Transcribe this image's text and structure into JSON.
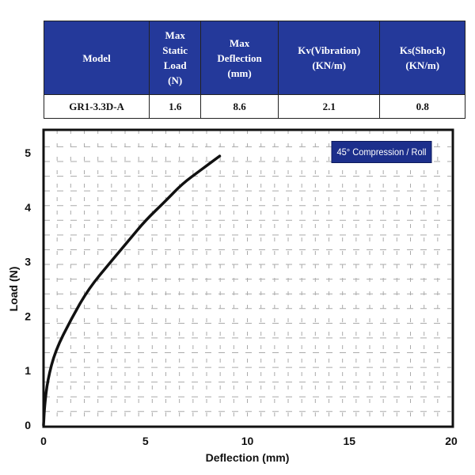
{
  "table": {
    "headers": [
      "Model",
      "Max Static Load (N)",
      "Max Deflection (mm)",
      "Kv(Vibration) (KN/m)",
      "Ks(Shock) (KN/m)"
    ],
    "header_lines": [
      [
        "Model"
      ],
      [
        "Max",
        "Static",
        "Load",
        "(N)"
      ],
      [
        "Max",
        "Deflection",
        "(mm)"
      ],
      [
        "Kv(Vibration)",
        "(KN/m)"
      ],
      [
        "Ks(Shock)",
        "(KN/m)"
      ]
    ],
    "rows": [
      [
        "GR1-3.3D-A",
        "1.6",
        "8.6",
        "2.1",
        "0.8"
      ]
    ],
    "header_color": "#24399a"
  },
  "chart_data": {
    "type": "line",
    "title": "",
    "xlabel": "Deflection (mm)",
    "ylabel": "Load (N)",
    "xlim": [
      0,
      20
    ],
    "ylim": [
      0,
      5
    ],
    "xticks": [
      "0",
      "5",
      "10",
      "15",
      "20"
    ],
    "yticks": [
      "0",
      "1",
      "2",
      "3",
      "4",
      "5"
    ],
    "grid": true,
    "legend": {
      "label": "45° Compression / Roll",
      "placement": "top-right",
      "color": "#1c2f8c"
    },
    "series": [
      {
        "color": "#111111",
        "x": [
          0,
          0.05,
          0.2,
          0.58,
          1.36,
          2.2,
          3.3,
          4.2,
          5.0,
          6.0,
          6.8,
          7.7,
          8.64
        ],
        "y": [
          0,
          0.35,
          0.83,
          1.37,
          1.95,
          2.5,
          3.0,
          3.4,
          3.76,
          4.12,
          4.43,
          4.68,
          4.94
        ]
      }
    ]
  }
}
